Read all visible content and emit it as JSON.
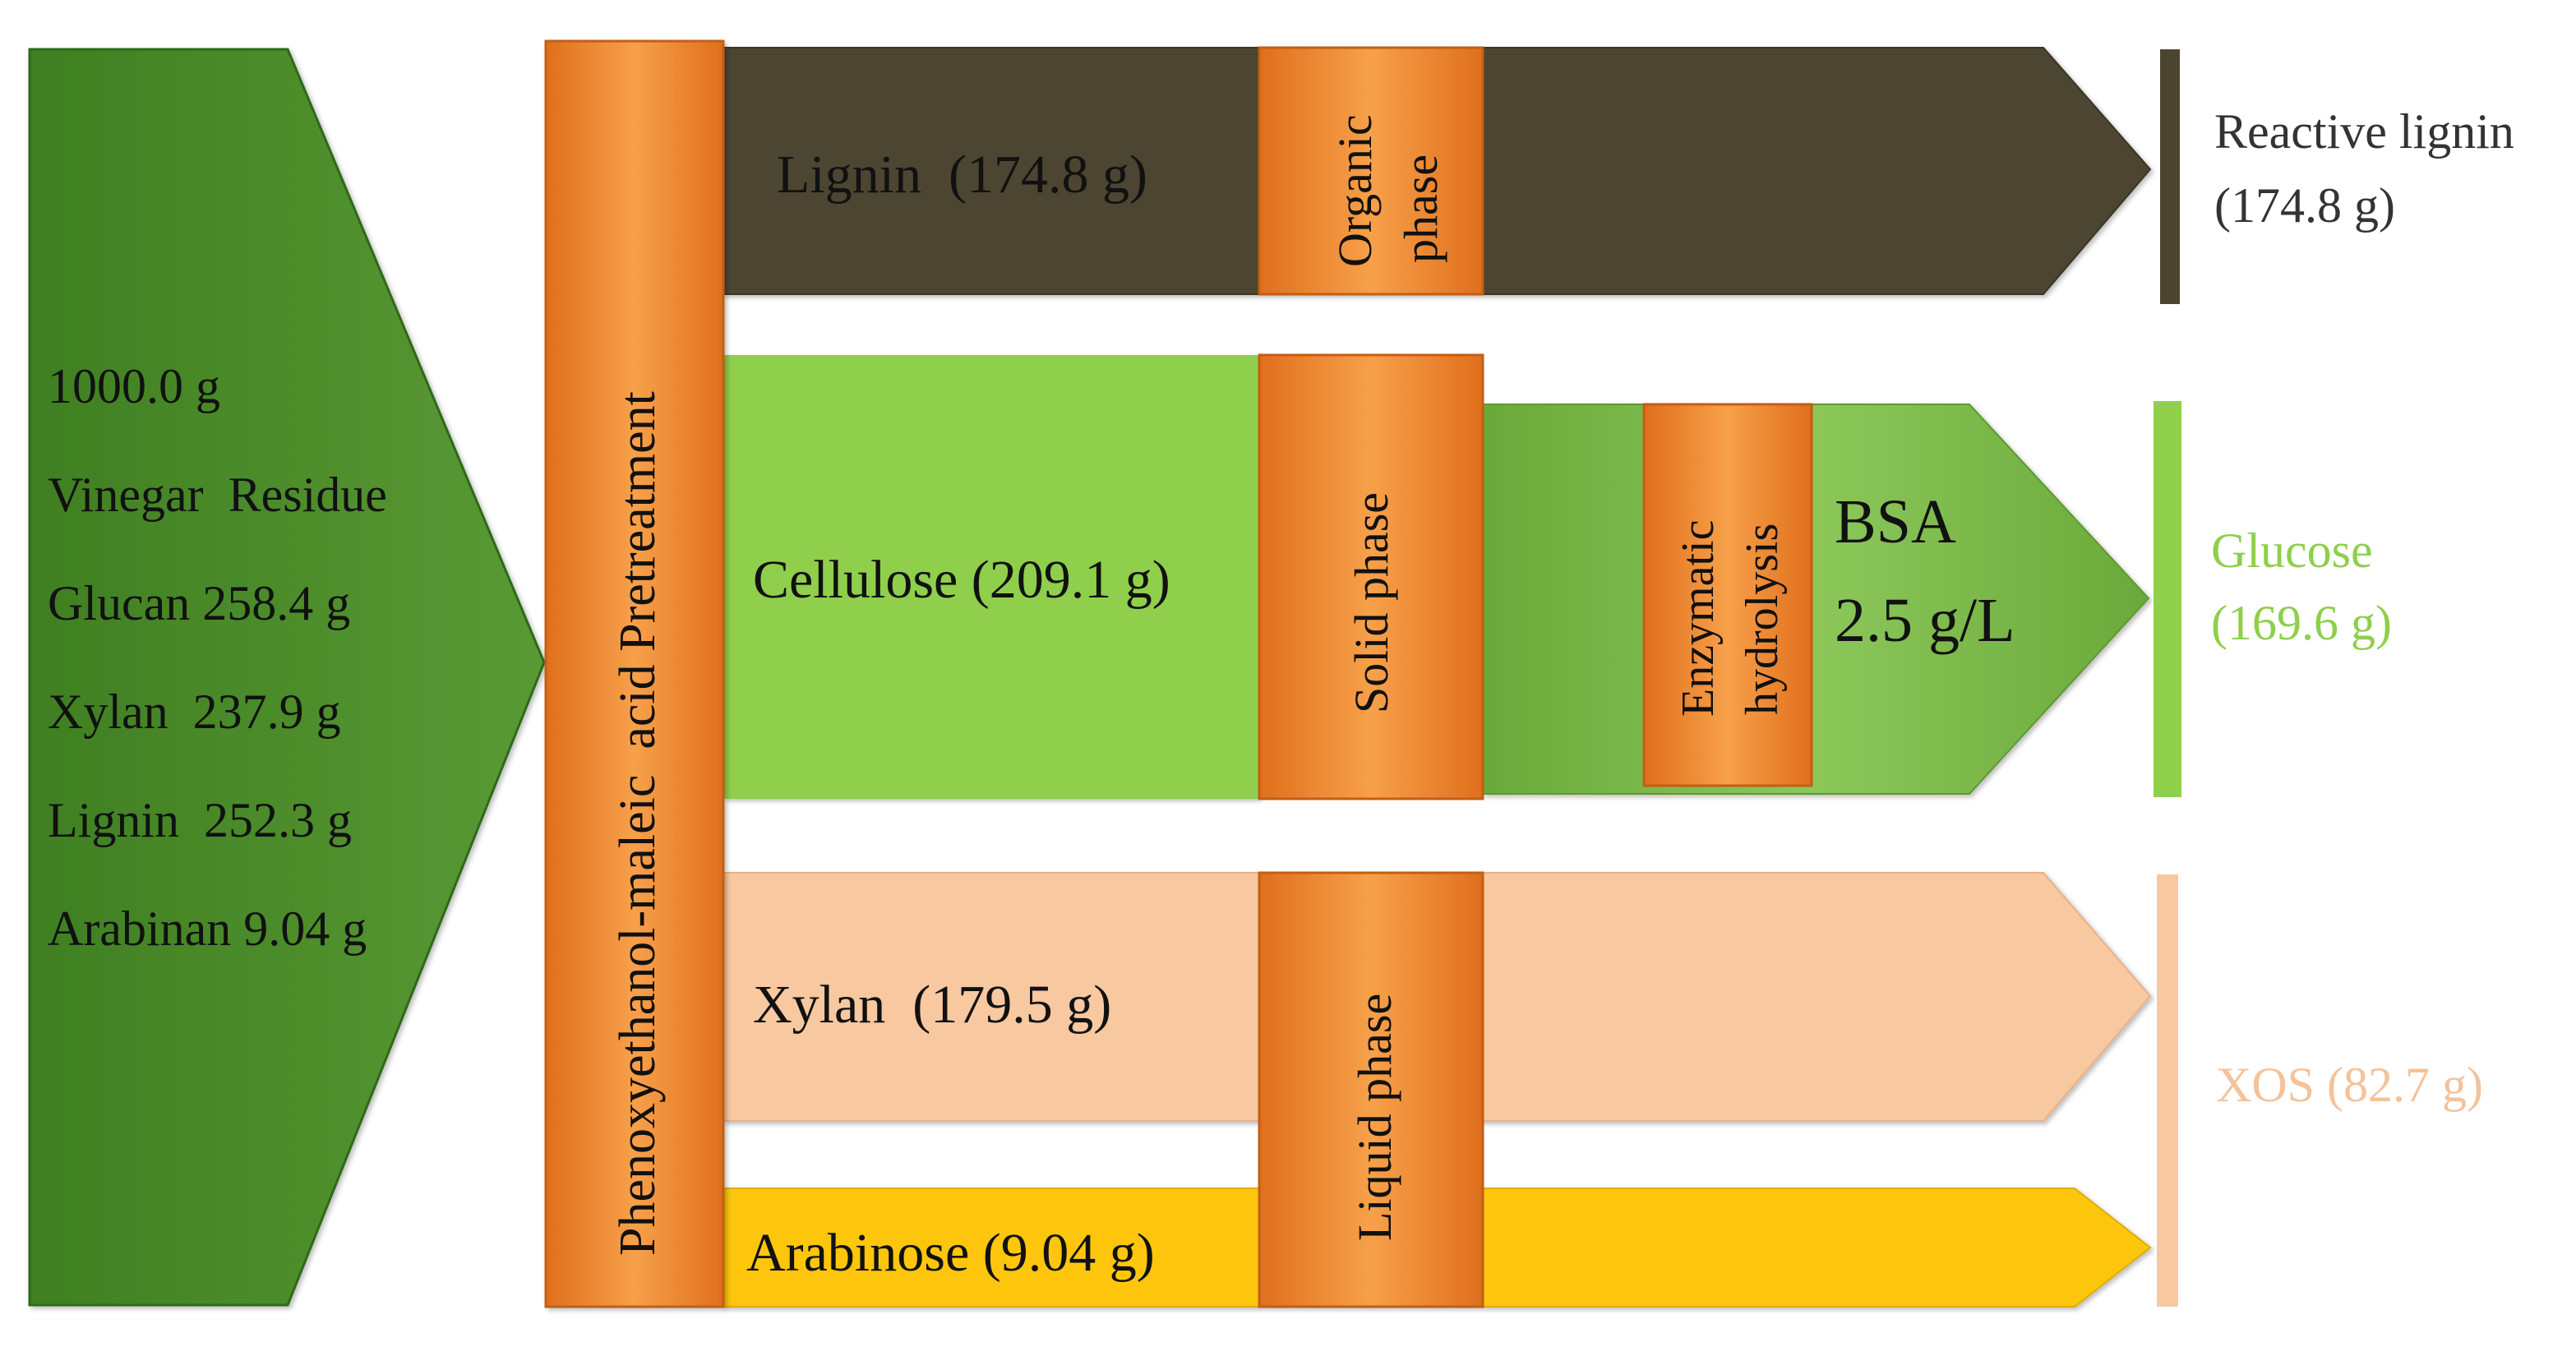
{
  "feedstock": {
    "total": "1000.0 g",
    "name": "Vinegar  Residue",
    "glucan": "Glucan 258.4 g",
    "xylan": "Xylan  237.9 g",
    "lignin": "Lignin  252.3 g",
    "arabinan": "Arabinan 9.04 g"
  },
  "pretreatment": {
    "label": "Phenoxyethanol-maleic  acid Pretreatment"
  },
  "streams": {
    "lignin": {
      "label": "Lignin  (174.8 g)",
      "phase": [
        "Organic",
        "phase"
      ]
    },
    "cellulose": {
      "label": "Cellulose (209.1 g)",
      "phase": "Solid phase",
      "process": [
        "Enzymatic",
        "hydrolysis"
      ],
      "additive": [
        "BSA",
        "2.5 g/L"
      ]
    },
    "xylan": {
      "label": "Xylan  (179.5 g)",
      "phase": "Liquid phase"
    },
    "arabinose": {
      "label": "Arabinose (9.04 g)"
    }
  },
  "products": {
    "lignin": [
      "Reactive lignin",
      "(174.8 g)"
    ],
    "glucose": [
      "Glucose",
      "(169.6 g)"
    ],
    "xos": "XOS (82.7 g)"
  },
  "colors": {
    "feedstock_green": "#4e8b2c",
    "pretreatment_orange": "#f0862e",
    "lignin_dark": "#4b4530",
    "cellulose_green": "#8fcf4c",
    "xylan_peach": "#f8c8a0",
    "arabinose_yellow": "#fdc60b",
    "glucose_text": "#8fcf4c",
    "xos_text": "#f4c39a"
  }
}
